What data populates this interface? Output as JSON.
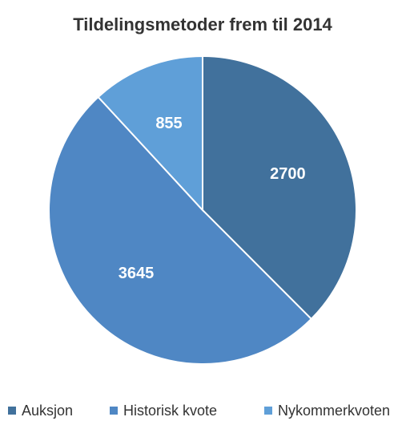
{
  "chart_data": {
    "type": "pie",
    "title": "Tildelingsmetoder frem til 2014",
    "categories": [
      "Auksjon",
      "Historisk kvote",
      "Nykommerkvoten"
    ],
    "values": [
      2700,
      3645,
      855
    ],
    "colors": [
      "#41719c",
      "#4f87c4",
      "#5f9fd8"
    ],
    "legend": "bottom"
  }
}
